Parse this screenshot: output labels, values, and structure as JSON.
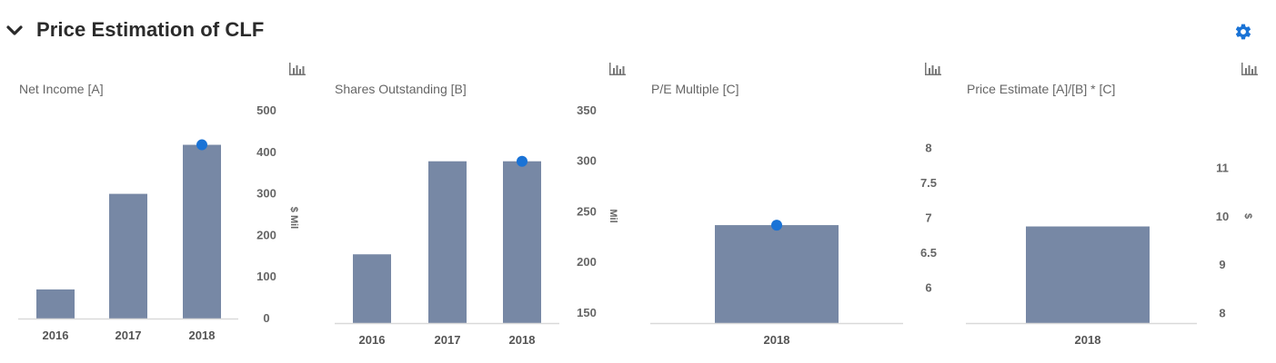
{
  "header": {
    "title": "Price Estimation of CLF",
    "collapse_icon": "chevron-down-icon",
    "settings_icon": "gear-icon",
    "accent_color": "#1a73d6"
  },
  "chart_data": [
    {
      "type": "bar",
      "title": "Net Income [A]",
      "categories": [
        "2016",
        "2017",
        "2018"
      ],
      "values": [
        70,
        300,
        418
      ],
      "highlight": {
        "category": "2018",
        "value": 418
      },
      "y_unit": "$ Mil",
      "yticks": [
        "500",
        "400",
        "300",
        "200",
        "100",
        "0"
      ],
      "ylim": [
        0,
        500
      ],
      "bar_color": "#7788a5",
      "marker_color": "#1a73d6"
    },
    {
      "type": "bar",
      "title": "Shares Outstanding [B]",
      "categories": [
        "2016",
        "2017",
        "2018"
      ],
      "values": [
        208,
        300,
        300
      ],
      "highlight": {
        "category": "2018",
        "value": 300
      },
      "y_unit": "Mil",
      "yticks": [
        "350",
        "300",
        "250",
        "200",
        "150"
      ],
      "ylim": [
        140,
        350
      ],
      "bar_color": "#7788a5",
      "marker_color": "#1a73d6"
    },
    {
      "type": "bar",
      "title": "P/E Multiple [C]",
      "categories": [
        "2018"
      ],
      "values": [
        6.9
      ],
      "highlight": {
        "category": "2018",
        "value": 6.9
      },
      "y_unit": "",
      "yticks": [
        "8",
        "7.5",
        "7",
        "6.5",
        "6"
      ],
      "ylim": [
        5.5,
        8.25
      ],
      "bar_color": "#7788a5",
      "marker_color": "#1a73d6"
    },
    {
      "type": "bar",
      "title": "Price Estimate [A]/[B] * [C]",
      "categories": [
        "2018"
      ],
      "values": [
        9.8
      ],
      "y_unit": "$",
      "yticks": [
        "11",
        "10",
        "9",
        "8"
      ],
      "ylim": [
        7.8,
        11.35
      ],
      "bar_color": "#7788a5"
    }
  ]
}
